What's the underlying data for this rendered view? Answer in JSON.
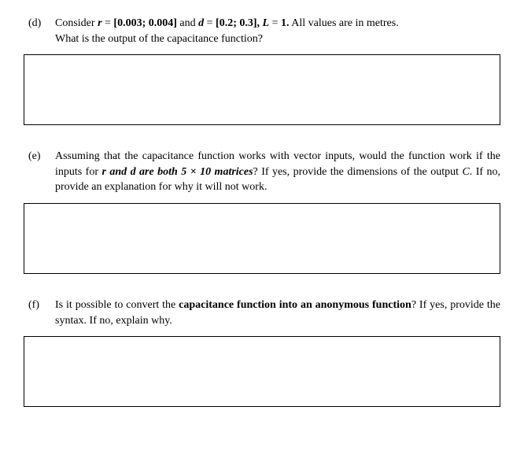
{
  "questions": {
    "d": {
      "label": "(d)",
      "line1_part1": "Consider ",
      "line1_r": "r",
      "line1_part2": " = ",
      "line1_rval": "[0.003; 0.004]",
      "line1_part3": " and ",
      "line1_d": "d",
      "line1_part4": " = ",
      "line1_dval": "[0.2; 0.3], ",
      "line1_L": "L",
      "line1_part5": " = ",
      "line1_lval": "1.",
      "line1_part6": " All values are in metres.",
      "line2": "What is the output of the capacitance function?"
    },
    "e": {
      "label": "(e)",
      "part1": "Assuming that the capacitance function works with vector inputs, would the function work if the inputs for ",
      "r_and_d": "r and d are both 5 × 10 matrices",
      "part2": "? If yes, provide the dimensions of the output ",
      "c": "C",
      "part3": ". If no, provide an explanation for why it will not work."
    },
    "f": {
      "label": "(f)",
      "part1": "Is it possible to convert the ",
      "bold1": "capacitance function into an anonymous function",
      "part2": "? If yes, provide the syntax. If no, explain why."
    }
  }
}
